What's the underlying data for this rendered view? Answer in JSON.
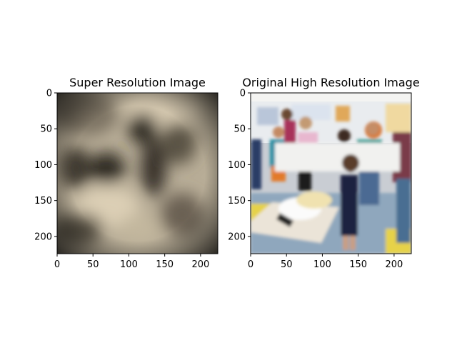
{
  "colors": {
    "background": "#ffffff",
    "axis": "#000000",
    "sr_dark": "#2b241c",
    "sr_mid": "#8f8573",
    "sr_light": "#cfc4ae"
  },
  "chart_data": [
    {
      "type": "image",
      "title": "Super Resolution Image",
      "xlim": [
        0,
        224
      ],
      "ylim": [
        224,
        0
      ],
      "x_ticks": [
        0,
        50,
        100,
        150,
        200
      ],
      "y_ticks": [
        0,
        50,
        100,
        150,
        200
      ],
      "content": "blurry beige-brown reconstruction with dark vignette edges"
    },
    {
      "type": "image",
      "title": "Original High Resolution Image",
      "xlim": [
        0,
        224
      ],
      "ylim": [
        224,
        0
      ],
      "x_ticks": [
        0,
        50,
        100,
        150,
        200
      ],
      "y_ticks": [
        0,
        50,
        100,
        150,
        200
      ],
      "content": "photo of children in a classroom around a table with white paper decorations"
    }
  ]
}
